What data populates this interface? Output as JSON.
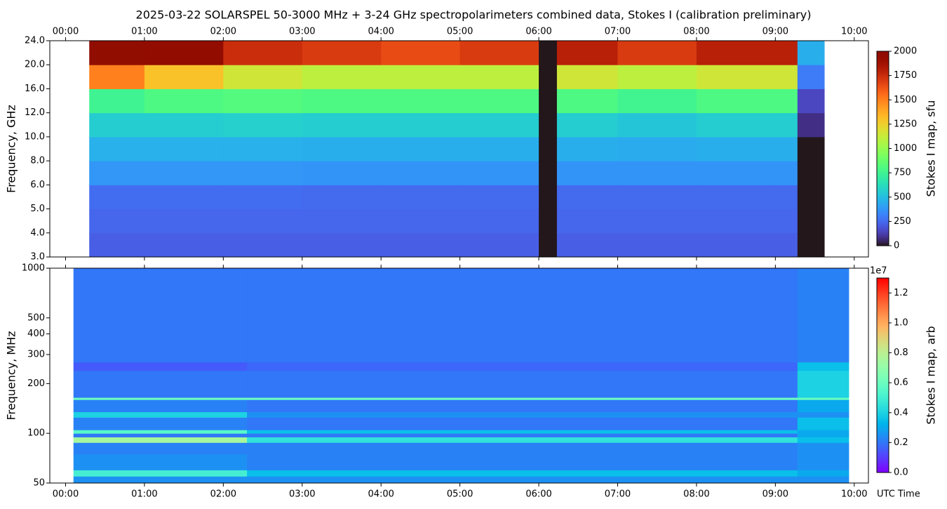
{
  "chart_data": [
    {
      "type": "heatmap",
      "title": "2025-03-22  SOLARSPEL  50-3000 MHz  +  3-24 GHz  spectropolarimeters combined data,  Stokes I  (calibration preliminary)",
      "ylabel": "Frequency, GHz",
      "x_edges": [
        0.3,
        1.0,
        2.0,
        3.0,
        4.0,
        5.0,
        6.0,
        6.23,
        7.0,
        8.0,
        9.0,
        9.28,
        9.62
      ],
      "y_edges": [
        3,
        4,
        5,
        6,
        8,
        10,
        12,
        16,
        20,
        24
      ],
      "z": [
        [
          220,
          240,
          260,
          380,
          460,
          560,
          750,
          1500,
          2000
        ],
        [
          220,
          240,
          260,
          380,
          460,
          560,
          800,
          1300,
          1950
        ],
        [
          220,
          240,
          260,
          380,
          460,
          570,
          820,
          1150,
          1750
        ],
        [
          220,
          240,
          250,
          370,
          450,
          560,
          800,
          1100,
          1700
        ],
        [
          220,
          240,
          250,
          370,
          450,
          560,
          800,
          1100,
          1650
        ],
        [
          220,
          240,
          250,
          370,
          450,
          560,
          800,
          1100,
          1700
        ],
        [
          0,
          0,
          0,
          0,
          0,
          0,
          0,
          0,
          0
        ],
        [
          220,
          240,
          250,
          370,
          450,
          560,
          800,
          1150,
          1800
        ],
        [
          220,
          240,
          250,
          370,
          440,
          530,
          760,
          1100,
          1700
        ],
        [
          220,
          240,
          250,
          370,
          450,
          560,
          800,
          1150,
          1800
        ],
        [
          220,
          240,
          250,
          370,
          450,
          560,
          800,
          1150,
          1800
        ],
        [
          0,
          0,
          0,
          0,
          0,
          80,
          150,
          300,
          450
        ]
      ],
      "xlim": [
        -0.2,
        10.18
      ],
      "xticks": [
        {
          "value": 0,
          "label": "00:00"
        },
        {
          "value": 1,
          "label": "01:00"
        },
        {
          "value": 2,
          "label": "02:00"
        },
        {
          "value": 3,
          "label": "03:00"
        },
        {
          "value": 4,
          "label": "04:00"
        },
        {
          "value": 5,
          "label": "05:00"
        },
        {
          "value": 6,
          "label": "06:00"
        },
        {
          "value": 7,
          "label": "07:00"
        },
        {
          "value": 8,
          "label": "08:00"
        },
        {
          "value": 9,
          "label": "09:00"
        },
        {
          "value": 10,
          "label": "10:00"
        }
      ],
      "ylim": [
        3,
        24
      ],
      "yticks": [
        {
          "value": 3,
          "label": "3.0"
        },
        {
          "value": 4,
          "label": "4.0"
        },
        {
          "value": 5,
          "label": "5.0"
        },
        {
          "value": 6,
          "label": "6.0"
        },
        {
          "value": 8,
          "label": "8.0"
        },
        {
          "value": 10,
          "label": "10.0"
        },
        {
          "value": 12,
          "label": "12.0"
        },
        {
          "value": 16,
          "label": "16.0"
        },
        {
          "value": 20,
          "label": "20.0"
        },
        {
          "value": 24,
          "label": "24.0"
        }
      ],
      "colorbar": {
        "label": "Stokes I map, sfu",
        "colormap": "turbo",
        "clim": [
          0,
          2000
        ],
        "ticks": [
          0,
          250,
          500,
          750,
          1000,
          1250,
          1500,
          1750,
          2000
        ]
      }
    },
    {
      "type": "heatmap",
      "ylabel": "Frequency, MHz",
      "xlabel": "UTC Time",
      "x_edges": [
        0.1,
        2.3,
        9.28,
        9.93
      ],
      "y_edges": [
        50,
        55,
        60,
        75,
        88,
        95,
        100,
        105,
        125,
        135,
        160,
        165,
        240,
        270,
        1000
      ],
      "z": [
        [
          0.25,
          0.5,
          0.25,
          0.22,
          0.75,
          0.2,
          0.55,
          0.22,
          0.4,
          0.22,
          0.6,
          0.2,
          0.15,
          0.2
        ],
        [
          0.25,
          0.35,
          0.22,
          0.22,
          0.45,
          0.2,
          0.35,
          0.2,
          0.25,
          0.2,
          0.6,
          0.2,
          0.17,
          0.2
        ],
        [
          0.25,
          0.3,
          0.25,
          0.25,
          0.35,
          0.3,
          0.3,
          0.35,
          0.25,
          0.3,
          0.6,
          0.4,
          0.35,
          0.22
        ]
      ],
      "xlim": [
        -0.2,
        10.18
      ],
      "xticks": [
        {
          "value": 0,
          "label": "00:00"
        },
        {
          "value": 1,
          "label": "01:00"
        },
        {
          "value": 2,
          "label": "02:00"
        },
        {
          "value": 3,
          "label": "03:00"
        },
        {
          "value": 4,
          "label": "04:00"
        },
        {
          "value": 5,
          "label": "05:00"
        },
        {
          "value": 6,
          "label": "06:00"
        },
        {
          "value": 7,
          "label": "07:00"
        },
        {
          "value": 8,
          "label": "08:00"
        },
        {
          "value": 9,
          "label": "09:00"
        },
        {
          "value": 10,
          "label": "10:00"
        }
      ],
      "ylim": [
        50,
        1000
      ],
      "log_y": true,
      "yticks": [
        50,
        100,
        200,
        300,
        400,
        500,
        1000
      ],
      "colorbar": {
        "label": "Stokes I map, arb",
        "colormap": "rainbow",
        "clim": [
          0,
          1.3
        ],
        "offset": "1e7",
        "ticks": [
          {
            "value": 0,
            "label": "0.0"
          },
          0.2,
          0.4,
          0.6,
          0.8,
          {
            "value": 1,
            "label": "1.0"
          },
          1.2
        ]
      }
    }
  ]
}
